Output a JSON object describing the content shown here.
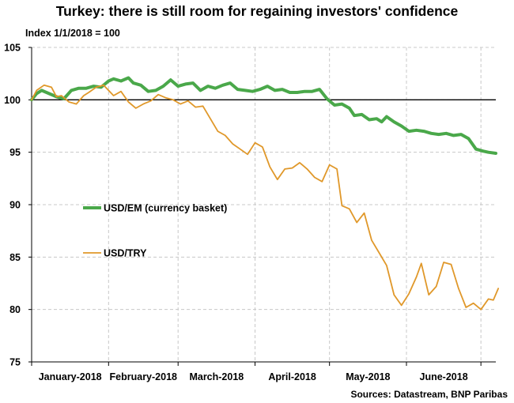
{
  "title": "Turkey: there is still room for regaining investors' confidence",
  "subtitle": "Index 1/1/2018 = 100",
  "source": "Sources: Datastream, BNP Paribas",
  "colors": {
    "em": "#4aa84a",
    "try": "#e0982a",
    "grid": "#c8c8c8",
    "axis": "#000000",
    "baseline": "#000000"
  },
  "chart_data": {
    "type": "line",
    "title": "Turkey: there is still room for regaining investors' confidence",
    "ylabel": "Index 1/1/2018 = 100",
    "ylim": [
      75,
      105
    ],
    "xlim": [
      "2018-01-01",
      "2018-07-07"
    ],
    "yticks": [
      "105",
      "100",
      "95",
      "90",
      "85",
      "80",
      "75"
    ],
    "xticks": [
      "January-2018",
      "February-2018",
      "March-2018",
      "April-2018",
      "May-2018",
      "June-2018"
    ],
    "grid": true,
    "reference_line": 100,
    "legend_placement": "inside-left",
    "series": [
      {
        "name": "USD/EM (currency basket)",
        "color": "#4aa84a",
        "points": [
          [
            "2018-01-01",
            100.0
          ],
          [
            "2018-01-03",
            100.6
          ],
          [
            "2018-01-05",
            100.9
          ],
          [
            "2018-01-08",
            100.6
          ],
          [
            "2018-01-11",
            100.3
          ],
          [
            "2018-01-14",
            100.1
          ],
          [
            "2018-01-17",
            100.9
          ],
          [
            "2018-01-20",
            101.1
          ],
          [
            "2018-01-23",
            101.1
          ],
          [
            "2018-01-26",
            101.3
          ],
          [
            "2018-01-29",
            101.2
          ],
          [
            "2018-02-01",
            101.8
          ],
          [
            "2018-02-03",
            102.0
          ],
          [
            "2018-02-06",
            101.8
          ],
          [
            "2018-02-09",
            102.1
          ],
          [
            "2018-02-11",
            101.6
          ],
          [
            "2018-02-14",
            101.4
          ],
          [
            "2018-02-17",
            100.8
          ],
          [
            "2018-02-20",
            100.9
          ],
          [
            "2018-02-23",
            101.3
          ],
          [
            "2018-02-26",
            101.9
          ],
          [
            "2018-03-01",
            101.3
          ],
          [
            "2018-03-04",
            101.5
          ],
          [
            "2018-03-07",
            101.6
          ],
          [
            "2018-03-10",
            100.9
          ],
          [
            "2018-03-13",
            101.3
          ],
          [
            "2018-03-16",
            101.1
          ],
          [
            "2018-03-19",
            101.4
          ],
          [
            "2018-03-22",
            101.6
          ],
          [
            "2018-03-25",
            101.0
          ],
          [
            "2018-03-28",
            100.9
          ],
          [
            "2018-03-31",
            100.8
          ],
          [
            "2018-04-03",
            101.0
          ],
          [
            "2018-04-06",
            101.3
          ],
          [
            "2018-04-09",
            100.9
          ],
          [
            "2018-04-12",
            101.0
          ],
          [
            "2018-04-15",
            100.7
          ],
          [
            "2018-04-18",
            100.7
          ],
          [
            "2018-04-21",
            100.8
          ],
          [
            "2018-04-24",
            100.8
          ],
          [
            "2018-04-27",
            101.0
          ],
          [
            "2018-04-30",
            100.1
          ],
          [
            "2018-05-03",
            99.5
          ],
          [
            "2018-05-06",
            99.6
          ],
          [
            "2018-05-09",
            99.2
          ],
          [
            "2018-05-11",
            98.5
          ],
          [
            "2018-05-14",
            98.6
          ],
          [
            "2018-05-17",
            98.1
          ],
          [
            "2018-05-20",
            98.2
          ],
          [
            "2018-05-22",
            97.9
          ],
          [
            "2018-05-24",
            98.4
          ],
          [
            "2018-05-27",
            97.9
          ],
          [
            "2018-05-30",
            97.5
          ],
          [
            "2018-06-02",
            97.0
          ],
          [
            "2018-06-05",
            97.1
          ],
          [
            "2018-06-08",
            97.0
          ],
          [
            "2018-06-11",
            96.8
          ],
          [
            "2018-06-14",
            96.7
          ],
          [
            "2018-06-17",
            96.8
          ],
          [
            "2018-06-20",
            96.6
          ],
          [
            "2018-06-23",
            96.7
          ],
          [
            "2018-06-26",
            96.3
          ],
          [
            "2018-06-29",
            95.3
          ],
          [
            "2018-07-02",
            95.1
          ],
          [
            "2018-07-04",
            95.0
          ],
          [
            "2018-07-07",
            94.9
          ]
        ]
      },
      {
        "name": "USD/TRY",
        "color": "#e0982a",
        "points": [
          [
            "2018-01-01",
            100.0
          ],
          [
            "2018-01-03",
            100.9
          ],
          [
            "2018-01-06",
            101.4
          ],
          [
            "2018-01-09",
            101.2
          ],
          [
            "2018-01-11",
            100.3
          ],
          [
            "2018-01-13",
            100.4
          ],
          [
            "2018-01-16",
            99.8
          ],
          [
            "2018-01-19",
            99.6
          ],
          [
            "2018-01-22",
            100.4
          ],
          [
            "2018-01-24",
            100.7
          ],
          [
            "2018-01-27",
            101.2
          ],
          [
            "2018-01-30",
            101.4
          ],
          [
            "2018-02-01",
            100.9
          ],
          [
            "2018-02-03",
            100.4
          ],
          [
            "2018-02-06",
            100.8
          ],
          [
            "2018-02-09",
            99.8
          ],
          [
            "2018-02-12",
            99.2
          ],
          [
            "2018-02-15",
            99.6
          ],
          [
            "2018-02-18",
            99.9
          ],
          [
            "2018-02-21",
            100.5
          ],
          [
            "2018-02-24",
            100.2
          ],
          [
            "2018-02-27",
            100.0
          ],
          [
            "2018-03-02",
            99.6
          ],
          [
            "2018-03-05",
            99.9
          ],
          [
            "2018-03-08",
            99.3
          ],
          [
            "2018-03-11",
            99.4
          ],
          [
            "2018-03-14",
            98.2
          ],
          [
            "2018-03-17",
            97.0
          ],
          [
            "2018-03-20",
            96.6
          ],
          [
            "2018-03-23",
            95.8
          ],
          [
            "2018-03-26",
            95.3
          ],
          [
            "2018-03-29",
            94.8
          ],
          [
            "2018-04-01",
            95.9
          ],
          [
            "2018-04-04",
            95.5
          ],
          [
            "2018-04-07",
            93.6
          ],
          [
            "2018-04-10",
            92.4
          ],
          [
            "2018-04-13",
            93.4
          ],
          [
            "2018-04-16",
            93.5
          ],
          [
            "2018-04-19",
            94.0
          ],
          [
            "2018-04-22",
            93.4
          ],
          [
            "2018-04-25",
            92.6
          ],
          [
            "2018-04-28",
            92.2
          ],
          [
            "2018-05-01",
            93.8
          ],
          [
            "2018-05-04",
            93.4
          ],
          [
            "2018-05-06",
            89.9
          ],
          [
            "2018-05-09",
            89.6
          ],
          [
            "2018-05-12",
            88.3
          ],
          [
            "2018-05-15",
            89.2
          ],
          [
            "2018-05-18",
            86.6
          ],
          [
            "2018-05-21",
            85.4
          ],
          [
            "2018-05-24",
            84.2
          ],
          [
            "2018-05-27",
            81.4
          ],
          [
            "2018-05-30",
            80.4
          ],
          [
            "2018-06-02",
            81.5
          ],
          [
            "2018-06-05",
            83.1
          ],
          [
            "2018-06-07",
            84.4
          ],
          [
            "2018-06-10",
            81.4
          ],
          [
            "2018-06-13",
            82.2
          ],
          [
            "2018-06-16",
            84.5
          ],
          [
            "2018-06-19",
            84.3
          ],
          [
            "2018-06-22",
            82.0
          ],
          [
            "2018-06-25",
            80.2
          ],
          [
            "2018-06-28",
            80.6
          ],
          [
            "2018-07-01",
            80.0
          ],
          [
            "2018-07-04",
            81.0
          ],
          [
            "2018-07-06",
            80.9
          ],
          [
            "2018-07-08",
            82.0
          ]
        ]
      }
    ]
  }
}
